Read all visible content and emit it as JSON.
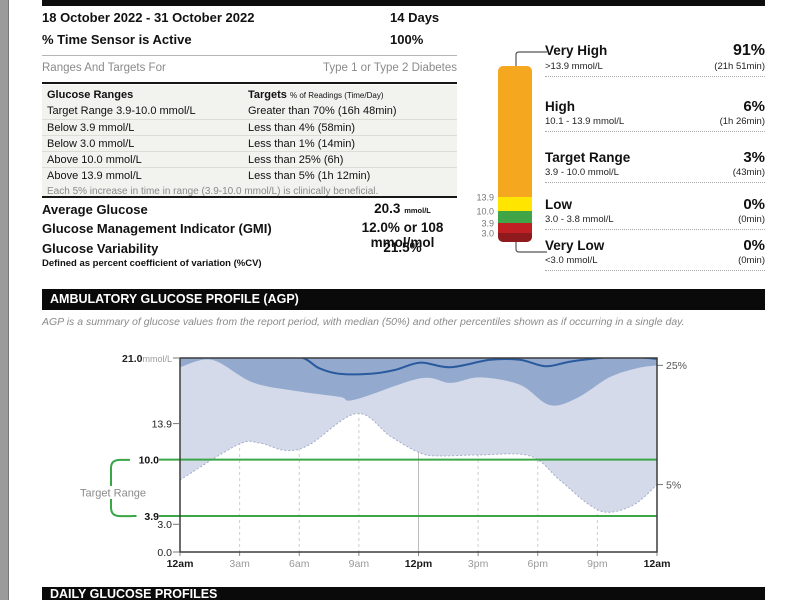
{
  "header": {
    "date_range": "18 October 2022 - 31 October 2022",
    "days": "14 Days",
    "sensor_active_label": "% Time Sensor is Active",
    "sensor_active_value": "100%"
  },
  "ranges_targets": {
    "title": "Ranges And Targets For",
    "diabetes_type": "Type 1 or Type 2 Diabetes",
    "table": {
      "col1_header": "Glucose Ranges",
      "col2_header_main": "Targets",
      "col2_header_sub": "% of Readings (Time/Day)",
      "rows": [
        {
          "range": "Target Range 3.9-10.0 mmol/L",
          "target": "Greater than 70% (16h 48min)"
        },
        {
          "range": "Below 3.9 mmol/L",
          "target": "Less than 4% (58min)"
        },
        {
          "range": "Below 3.0 mmol/L",
          "target": "Less than 1% (14min)"
        },
        {
          "range": "Above 10.0 mmol/L",
          "target": "Less than 25% (6h)"
        },
        {
          "range": "Above 13.9 mmol/L",
          "target": "Less than 5% (1h 12min)"
        }
      ],
      "footnote": "Each 5% increase in time in range (3.9-10.0 mmol/L) is clinically beneficial."
    }
  },
  "stats": {
    "avg": {
      "label": "Average Glucose",
      "value": "20.3",
      "unit": "mmol/L"
    },
    "gmi": {
      "label": "Glucose Management Indicator (GMI)",
      "value": "12.0% or 108 mmol/mol"
    },
    "variability": {
      "label": "Glucose Variability",
      "value": "21.5%",
      "note": "Defined as percent coefficient of variation (%CV)"
    }
  },
  "time_in_ranges": {
    "axis_labels": [
      "13.9",
      "10.0",
      "3.9",
      "3.0"
    ],
    "segments": [
      {
        "name": "Very High",
        "range": ">13.9 mmol/L",
        "percent": "91%",
        "duration": "(21h 51min)",
        "color": "#f5a71f"
      },
      {
        "name": "High",
        "range": "10.1 - 13.9 mmol/L",
        "percent": "6%",
        "duration": "(1h 26min)",
        "color": "#ffe500"
      },
      {
        "name": "Target Range",
        "range": "3.9 - 10.0 mmol/L",
        "percent": "3%",
        "duration": "(43min)",
        "color": "#3fa546"
      },
      {
        "name": "Low",
        "range": "3.0 - 3.8 mmol/L",
        "percent": "0%",
        "duration": "(0min)",
        "color": "#c02024"
      },
      {
        "name": "Very Low",
        "range": "<3.0 mmol/L",
        "percent": "0%",
        "duration": "(0min)",
        "color": "#8f1a1e"
      }
    ]
  },
  "agp": {
    "section_title": "AMBULATORY GLUCOSE PROFILE (AGP)",
    "description": "AGP is a summary of glucose values from the report period, with median (50%) and other percentiles shown as if occurring in a single day.",
    "target_range_label": "Target Range"
  },
  "daily_profiles": {
    "section_title": "DAILY GLUCOSE PROFILES"
  },
  "chart_data": {
    "type": "area",
    "title": "Ambulatory Glucose Profile",
    "ylabel": "mmol/L",
    "ylim": [
      0,
      21
    ],
    "xlim_hours": [
      0,
      24
    ],
    "grid": "vertical-dashed-3h",
    "y_ticks": [
      {
        "v": 21.0,
        "label": "21.0",
        "unit": "mmol/L",
        "bold": true
      },
      {
        "v": 13.9,
        "label": "13.9"
      },
      {
        "v": 10.0,
        "label": "10.0",
        "bold": true,
        "target": true
      },
      {
        "v": 3.9,
        "label": "3.9",
        "bold": true,
        "target": true
      },
      {
        "v": 3.0,
        "label": "3.0"
      },
      {
        "v": 0.0,
        "label": "0.0"
      }
    ],
    "x_ticks": [
      {
        "h": 0,
        "label": "12am",
        "bold": true
      },
      {
        "h": 3,
        "label": "3am"
      },
      {
        "h": 6,
        "label": "6am"
      },
      {
        "h": 9,
        "label": "9am"
      },
      {
        "h": 12,
        "label": "12pm",
        "bold": true
      },
      {
        "h": 15,
        "label": "3pm"
      },
      {
        "h": 18,
        "label": "6pm"
      },
      {
        "h": 21,
        "label": "9pm"
      },
      {
        "h": 24,
        "label": "12am",
        "bold": true
      }
    ],
    "target_lines": [
      10.0,
      3.9
    ],
    "right_labels": [
      {
        "label": "25%",
        "v": 20.2
      },
      {
        "label": "5%",
        "v": 7.3
      }
    ],
    "series": [
      {
        "name": "p95",
        "points": [
          [
            0,
            21.8
          ],
          [
            24,
            21.8
          ]
        ]
      },
      {
        "name": "p75",
        "points": [
          [
            0,
            21.8
          ],
          [
            24,
            21.8
          ]
        ]
      },
      {
        "name": "median",
        "points": [
          [
            0,
            21.6
          ],
          [
            3,
            21.6
          ],
          [
            5,
            21.4
          ],
          [
            6.2,
            21.0
          ],
          [
            7,
            19.9
          ],
          [
            8,
            19.3
          ],
          [
            9.6,
            19.3
          ],
          [
            10.8,
            19.7
          ],
          [
            12.1,
            20.5
          ],
          [
            13.6,
            20.0
          ],
          [
            15.6,
            20.8
          ],
          [
            17.1,
            20.8
          ],
          [
            18.4,
            20.1
          ],
          [
            19.6,
            20.6
          ],
          [
            21.1,
            21.0
          ],
          [
            22.4,
            21.2
          ],
          [
            24,
            20.9
          ]
        ]
      },
      {
        "name": "p25",
        "points": [
          [
            0,
            20.0
          ],
          [
            1.6,
            20.8
          ],
          [
            3.6,
            18.4
          ],
          [
            5.6,
            17.5
          ],
          [
            8,
            16.8
          ],
          [
            8.8,
            16.5
          ],
          [
            12.1,
            18.8
          ],
          [
            13.6,
            18.3
          ],
          [
            15.1,
            18.9
          ],
          [
            17.1,
            18.1
          ],
          [
            18.6,
            15.9
          ],
          [
            20,
            16.7
          ],
          [
            21.6,
            18.9
          ],
          [
            23,
            19.9
          ],
          [
            24,
            20.2
          ]
        ]
      },
      {
        "name": "p05",
        "points": [
          [
            0,
            7.8
          ],
          [
            2.9,
            11.6
          ],
          [
            4,
            11.8
          ],
          [
            5.3,
            11.0
          ],
          [
            6.5,
            11.6
          ],
          [
            8.9,
            15.0
          ],
          [
            10.6,
            12.5
          ],
          [
            12.1,
            10.7
          ],
          [
            13.1,
            10.4
          ],
          [
            15,
            10.5
          ],
          [
            17.6,
            10.4
          ],
          [
            19.1,
            7.8
          ],
          [
            20.6,
            5.1
          ],
          [
            21.6,
            4.3
          ],
          [
            22.9,
            5.2
          ],
          [
            24,
            7.3
          ]
        ]
      }
    ],
    "colors": {
      "band_5_95": "#d4daea",
      "band_25_75": "#93aace",
      "median": "#2a5a9e",
      "target_line": "#3aa648"
    }
  }
}
